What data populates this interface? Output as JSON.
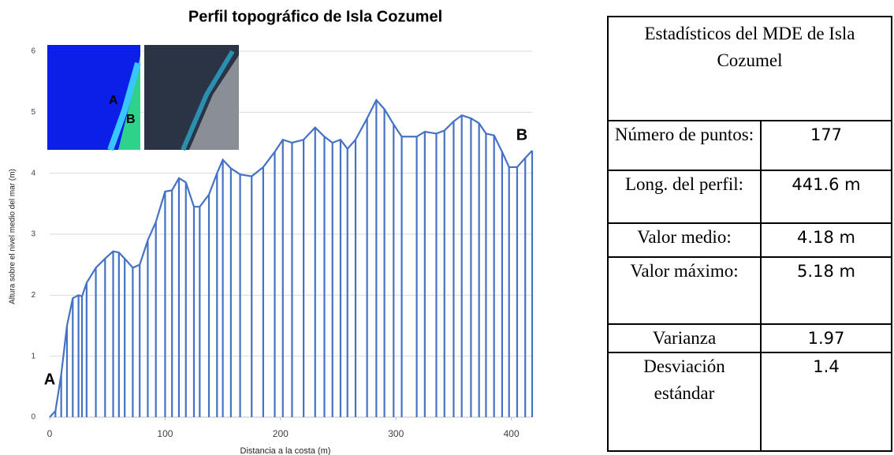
{
  "chart_data": {
    "type": "profile",
    "title": "Perfil topográfico de Isla Cozumel",
    "x_label": "Distancia a la costa (m)",
    "y_label": "Altura sobre el nivel medio del mar (m)",
    "annotations": [
      "A",
      "B"
    ],
    "color": "#4472c4",
    "grid": true,
    "x": [
      0,
      5,
      10,
      15,
      20,
      25,
      28,
      32,
      40,
      48,
      55,
      60,
      65,
      72,
      78,
      85,
      92,
      100,
      106,
      112,
      118,
      125,
      130,
      138,
      145,
      150,
      157,
      165,
      175,
      185,
      195,
      202,
      210,
      220,
      230,
      238,
      245,
      252,
      258,
      265,
      275,
      283,
      290,
      298,
      305,
      318,
      325,
      335,
      342,
      350,
      357,
      365,
      372,
      378,
      385,
      392,
      398,
      405,
      412,
      418
    ],
    "values": [
      0,
      0.1,
      0.7,
      1.5,
      1.95,
      2.0,
      1.98,
      2.2,
      2.45,
      2.6,
      2.72,
      2.7,
      2.6,
      2.45,
      2.5,
      2.9,
      3.2,
      3.7,
      3.72,
      3.92,
      3.85,
      3.45,
      3.45,
      3.65,
      4.0,
      4.22,
      4.08,
      3.98,
      3.95,
      4.1,
      4.35,
      4.55,
      4.5,
      4.55,
      4.75,
      4.6,
      4.5,
      4.55,
      4.4,
      4.55,
      4.9,
      5.2,
      5.05,
      4.8,
      4.6,
      4.6,
      4.68,
      4.65,
      4.7,
      4.85,
      4.95,
      4.9,
      4.82,
      4.65,
      4.62,
      4.35,
      4.1,
      4.1,
      4.25,
      4.37
    ],
    "xlim": [
      0,
      418
    ],
    "xticks": [
      0,
      100,
      200,
      300,
      400
    ],
    "ylim": [
      0,
      6
    ],
    "yticks": [
      0,
      1,
      2,
      3,
      4,
      5,
      6
    ]
  },
  "table": {
    "title": "Estadísticos del MDE de Isla Cozumel",
    "rows": [
      [
        "Número de puntos:",
        "177"
      ],
      [
        "Long. del perfil:",
        "441.6 m"
      ],
      [
        "Valor medio:",
        "4.18 m"
      ],
      [
        "Valor máximo:",
        "5.18 m"
      ],
      [
        "Varianza",
        "1.97"
      ],
      [
        "Desviación estándar",
        "1.4"
      ]
    ]
  }
}
